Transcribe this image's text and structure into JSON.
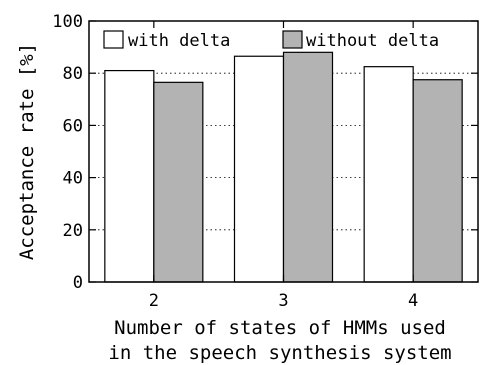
{
  "chart_data": {
    "type": "bar",
    "title": "",
    "xlabel": [
      "Number of states of HMMs used",
      "in the speech synthesis system"
    ],
    "ylabel": "Acceptance rate [%]",
    "categories": [
      "2",
      "3",
      "4"
    ],
    "series": [
      {
        "name": "with delta",
        "values": [
          81,
          86.5,
          82.5
        ],
        "color": "#ffffff"
      },
      {
        "name": "without delta",
        "values": [
          76.5,
          88,
          77.5
        ],
        "color": "#b3b3b3"
      }
    ],
    "ylim": [
      0,
      100
    ],
    "yticks": [
      0,
      20,
      40,
      60,
      80,
      100
    ],
    "grid": "horizontal-dotted",
    "legend_position": "top"
  }
}
